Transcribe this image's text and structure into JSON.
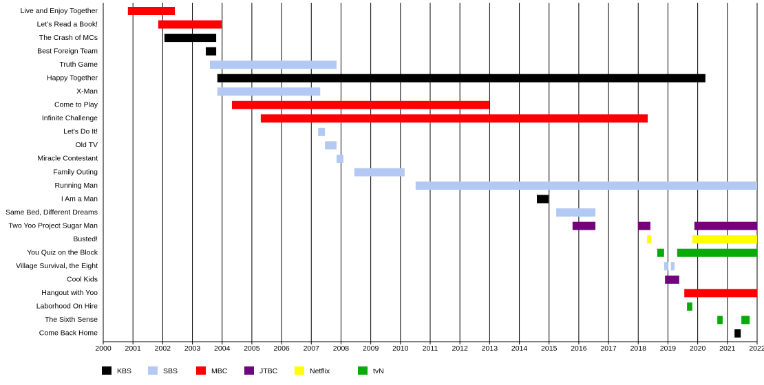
{
  "chart_data": {
    "type": "timeline",
    "categories": [
      "Live and Enjoy Together",
      "Let's Read a Book!",
      "The Crash of MCs",
      "Best Foreign Team",
      "Truth Game",
      "Happy Together",
      "X-Man",
      "Come to Play",
      "Infinite Challenge",
      "Let's Do It!",
      "Old TV",
      "Miracle Contestant",
      "Family Outing",
      "Running Man",
      "I Am a Man",
      "Same Bed, Different Dreams",
      "Two Yoo Project Sugar Man",
      "Busted!",
      "You Quiz on the Block",
      "Village Survival, the Eight",
      "Cool Kids",
      "Hangout with Yoo",
      "Laborhood On Hire",
      "The Sixth Sense",
      "Come Back Home"
    ],
    "xlim": [
      2000,
      2022
    ],
    "xticks": [
      2000,
      2001,
      2002,
      2003,
      2004,
      2005,
      2006,
      2007,
      2008,
      2009,
      2010,
      2011,
      2012,
      2013,
      2014,
      2015,
      2016,
      2017,
      2018,
      2019,
      2020,
      2021,
      2022
    ],
    "grid": true,
    "series": [
      {
        "name": "KBS",
        "color": "#000000",
        "values": [
          null,
          null,
          [
            [
              2002.06,
              2003.8
            ]
          ],
          [
            [
              2003.45,
              2003.8
            ]
          ],
          null,
          [
            [
              2003.84,
              2020.26
            ]
          ],
          null,
          null,
          null,
          null,
          null,
          null,
          null,
          null,
          [
            [
              2014.59,
              2014.98
            ]
          ],
          null,
          null,
          null,
          null,
          null,
          null,
          null,
          null,
          null,
          [
            [
              2021.24,
              2021.45
            ]
          ]
        ]
      },
      {
        "name": "SBS",
        "color": "#b3c9f3",
        "values": [
          null,
          null,
          null,
          null,
          [
            [
              2003.59,
              2007.85
            ]
          ],
          null,
          [
            [
              2003.84,
              2007.3
            ]
          ],
          null,
          null,
          [
            [
              2007.23,
              2007.46
            ]
          ],
          [
            [
              2007.46,
              2007.85
            ]
          ],
          [
            [
              2007.85,
              2008.08
            ]
          ],
          [
            [
              2008.45,
              2010.14
            ]
          ],
          [
            [
              2010.51,
              2022
            ]
          ],
          null,
          [
            [
              2015.24,
              2016.56
            ]
          ],
          null,
          null,
          null,
          [
            [
              2018.87,
              2019.01
            ],
            [
              2019.1,
              2019.22
            ]
          ],
          null,
          null,
          null,
          null,
          null
        ]
      },
      {
        "name": "MBC",
        "color": "#ff0000",
        "values": [
          [
            [
              2000.83,
              2002.41
            ]
          ],
          [
            [
              2001.85,
              2003.98
            ]
          ],
          null,
          null,
          null,
          null,
          null,
          [
            [
              2004.33,
              2012.99
            ]
          ],
          [
            [
              2005.3,
              2018.32
            ]
          ],
          null,
          null,
          null,
          null,
          null,
          null,
          null,
          null,
          null,
          null,
          null,
          null,
          [
            [
              2019.55,
              2022
            ]
          ],
          null,
          null,
          null
        ]
      },
      {
        "name": "JTBC",
        "color": "#73037a",
        "values": [
          null,
          null,
          null,
          null,
          null,
          null,
          null,
          null,
          null,
          null,
          null,
          null,
          null,
          null,
          null,
          null,
          [
            [
              2015.79,
              2016.56
            ],
            [
              2017.99,
              2018.41
            ],
            [
              2019.89,
              2022
            ]
          ],
          null,
          null,
          null,
          [
            [
              2018.9,
              2019.38
            ]
          ],
          null,
          null,
          null,
          null
        ]
      },
      {
        "name": "Netflix",
        "color": "#ffff00",
        "values": [
          null,
          null,
          null,
          null,
          null,
          null,
          null,
          null,
          null,
          null,
          null,
          null,
          null,
          null,
          null,
          null,
          null,
          [
            [
              2018.3,
              2018.43
            ],
            [
              2019.82,
              2022
            ]
          ],
          null,
          null,
          null,
          null,
          null,
          null,
          null
        ]
      },
      {
        "name": "tvN",
        "color": "#0aaa0a",
        "values": [
          null,
          null,
          null,
          null,
          null,
          null,
          null,
          null,
          null,
          null,
          null,
          null,
          null,
          null,
          null,
          null,
          null,
          null,
          [
            [
              2018.64,
              2018.87
            ],
            [
              2019.31,
              2022
            ]
          ],
          null,
          null,
          null,
          [
            [
              2019.64,
              2019.82
            ]
          ],
          [
            [
              2020.66,
              2020.84
            ],
            [
              2021.47,
              2021.75
            ]
          ],
          null
        ]
      }
    ]
  }
}
